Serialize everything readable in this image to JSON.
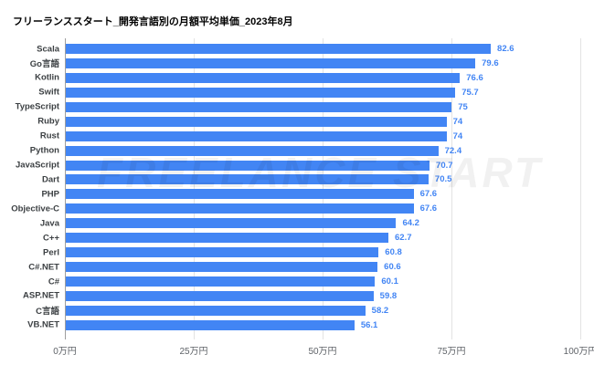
{
  "title": "フリーランススタート_開発言語別の月額平均単価_2023年8月",
  "watermark": "FREELANCE START",
  "colors": {
    "bar": "#4285F4",
    "value_label": "#4285F4",
    "category_label": "#3c4043",
    "axis_label": "#5f6368",
    "gridline": "#e3e3e3",
    "axis_line": "#9e9e9e",
    "background": "#ffffff"
  },
  "chart_data": {
    "type": "bar",
    "orientation": "horizontal",
    "title": "フリーランススタート_開発言語別の月額平均単価_2023年8月",
    "categories": [
      "Scala",
      "Go言語",
      "Kotlin",
      "Swift",
      "TypeScript",
      "Ruby",
      "Rust",
      "Python",
      "JavaScript",
      "Dart",
      "PHP",
      "Objective-C",
      "Java",
      "C++",
      "Perl",
      "C#.NET",
      "C#",
      "ASP.NET",
      "C言語",
      "VB.NET"
    ],
    "values": [
      82.6,
      79.6,
      76.6,
      75.7,
      75,
      74,
      74,
      72.4,
      70.7,
      70.5,
      67.6,
      67.6,
      64.2,
      62.7,
      60.8,
      60.6,
      60.1,
      59.8,
      58.2,
      56.1
    ],
    "value_labels": [
      "82.6",
      "79.6",
      "76.6",
      "75.7",
      "75",
      "74",
      "74",
      "72.4",
      "70.7",
      "70.5",
      "67.6",
      "67.6",
      "64.2",
      "62.7",
      "60.8",
      "60.6",
      "60.1",
      "59.8",
      "58.2",
      "56.1"
    ],
    "x_ticks": [
      "0万円",
      "25万円",
      "50万円",
      "75万円",
      "100万円"
    ],
    "x_tick_values": [
      0,
      25,
      50,
      75,
      100
    ],
    "xlim": [
      0,
      100
    ],
    "xlabel": "",
    "ylabel": "",
    "grid": true,
    "legend": "none",
    "unit": "万円"
  }
}
